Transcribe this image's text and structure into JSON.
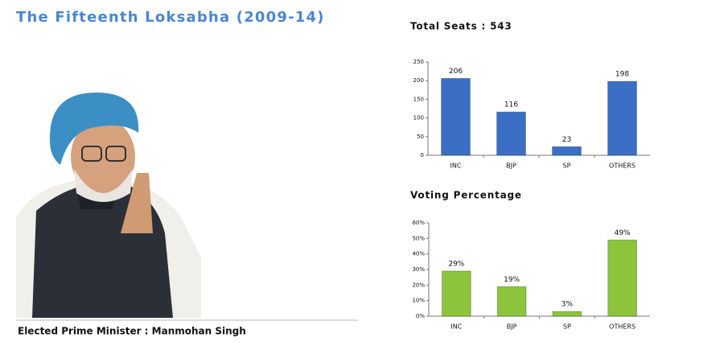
{
  "title": "The Fifteenth Loksabha (2009-14)",
  "caption": "Elected Prime Minister : Manmohan Singh",
  "chart_data": [
    {
      "type": "bar",
      "title": "Total Seats : 543",
      "categories": [
        "INC",
        "BJP",
        "SP",
        "OTHERS"
      ],
      "values": [
        206,
        116,
        23,
        198
      ],
      "color": "#3b6fc6",
      "ylim": [
        0,
        250
      ],
      "yticks": [
        0,
        50,
        100,
        150,
        200,
        250
      ],
      "grid": false
    },
    {
      "type": "bar",
      "title": "Voting Percentage",
      "categories": [
        "INC",
        "BJP",
        "SP",
        "OTHERS"
      ],
      "values": [
        29,
        19,
        3,
        49
      ],
      "value_labels": [
        "29%",
        "19%",
        "3%",
        "49%"
      ],
      "color": "#8cc43c",
      "ylim": [
        0,
        60
      ],
      "yticks": [
        {
          "value": 0,
          "label": "0%"
        },
        {
          "value": 10,
          "label": "10%"
        },
        {
          "value": 20,
          "label": "20%"
        },
        {
          "value": 30,
          "label": "30%"
        },
        {
          "value": 40,
          "label": "40%"
        },
        {
          "value": 50,
          "label": "50%"
        },
        {
          "value": 60,
          "label": "60%"
        }
      ],
      "grid": false
    }
  ]
}
